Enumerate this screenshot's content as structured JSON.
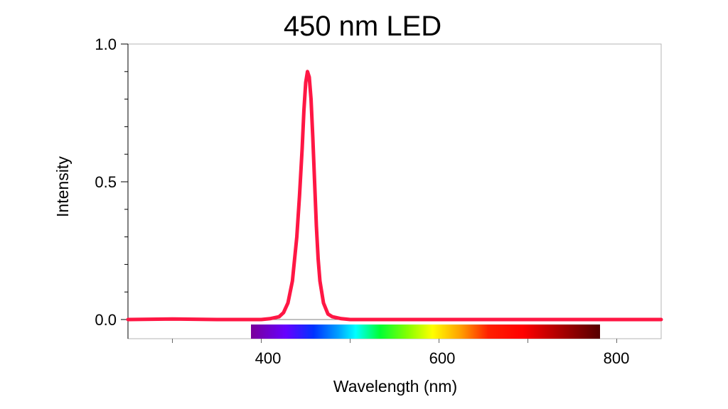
{
  "chart_data": {
    "type": "line",
    "title": "450 nm LED",
    "xlabel": "Wavelength (nm)",
    "ylabel": "Intensity",
    "xlim": [
      250,
      850
    ],
    "ylim": [
      -0.06,
      1.0
    ],
    "x_ticks": [
      "400",
      "600",
      "800"
    ],
    "y_ticks": [
      "0.0",
      "0.5",
      "1.0"
    ],
    "grid": false,
    "legend": "none",
    "colors": {
      "series": "#ff1744",
      "ylabel": "#ff1744",
      "axis": "#000000",
      "frame": "#b4b4b4"
    },
    "spectrum_bar": {
      "range_nm": [
        380,
        780
      ]
    },
    "series": [
      {
        "x": [
          250,
          300,
          350,
          380,
          400,
          410,
          420,
          425,
          430,
          435,
          440,
          443,
          446,
          448,
          450,
          452,
          454,
          456,
          458,
          460,
          462,
          464,
          466,
          470,
          475,
          480,
          490,
          500,
          550,
          600,
          650,
          700,
          750,
          800,
          850
        ],
        "y": [
          0.0,
          0.002,
          0.0,
          0.0,
          0.0,
          0.003,
          0.01,
          0.025,
          0.06,
          0.14,
          0.3,
          0.45,
          0.62,
          0.76,
          0.86,
          0.9,
          0.88,
          0.8,
          0.66,
          0.5,
          0.34,
          0.22,
          0.14,
          0.06,
          0.02,
          0.01,
          0.003,
          0.0,
          0.0,
          0.0,
          0.0,
          0.0,
          0.0,
          0.0,
          0.0
        ]
      }
    ]
  }
}
